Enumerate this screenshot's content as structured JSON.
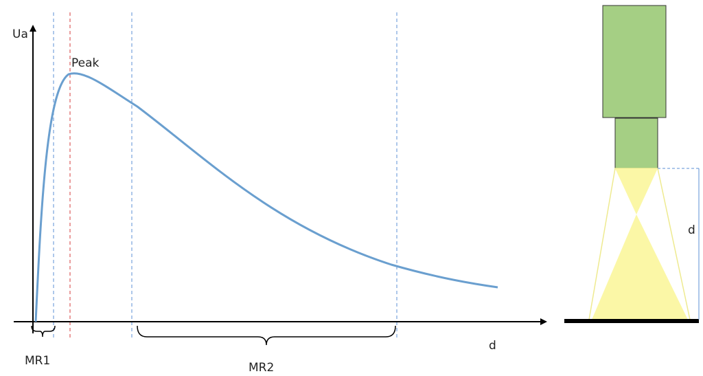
{
  "axes": {
    "y_label": "Ua",
    "x_label": "d"
  },
  "annotations": {
    "peak": "Peak",
    "ranges": [
      "MR1",
      "MR2"
    ]
  },
  "sensor": {
    "distance_label": "d"
  }
}
